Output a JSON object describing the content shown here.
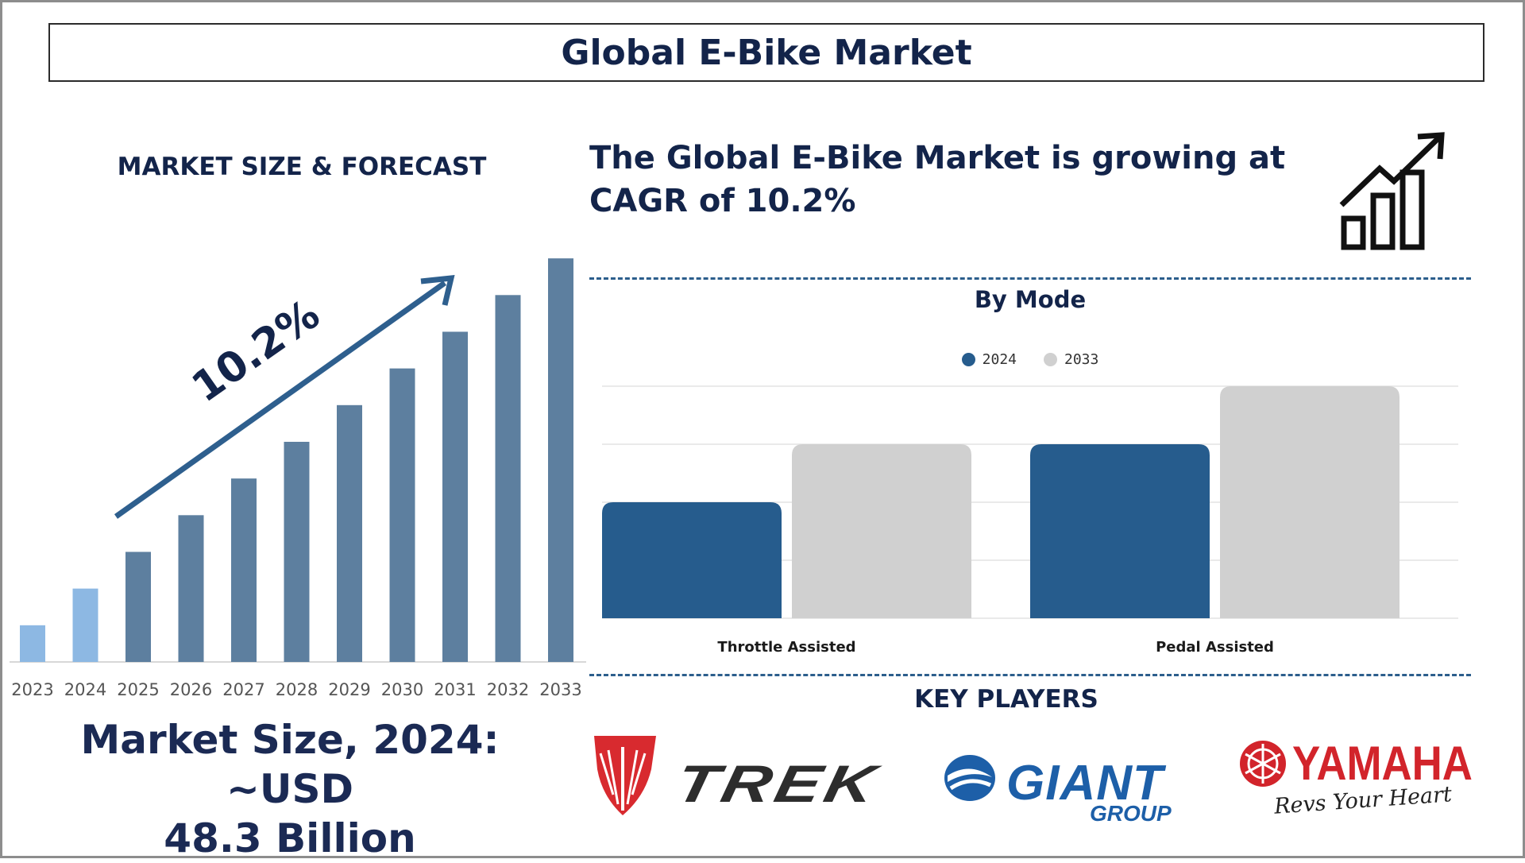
{
  "title": "Global E-Bike Market",
  "left_panel": {
    "heading": "MARKET SIZE & FORECAST",
    "market_size_line1": "Market Size, 2024: ~USD",
    "market_size_line2": "48.3 Billion"
  },
  "cagr_line1": "The Global E-Bike Market is growing at",
  "cagr_line2": "CAGR of 10.2%",
  "key_players": {
    "heading": "KEY PLAYERS",
    "logos": [
      {
        "name": "trek-shield-logo",
        "text": ""
      },
      {
        "name": "trek-logo",
        "text": "TREK"
      },
      {
        "name": "giant-group-logo",
        "text": "GIANT",
        "subtext": "GROUP"
      },
      {
        "name": "yamaha-logo",
        "text": "YAMAHA",
        "subtext": "Revs Your Heart"
      }
    ]
  },
  "colors": {
    "navy": "#13244a",
    "highlight_bar": "#8db8e3",
    "forecast_bar": "#5d7f9f",
    "series_2024": "#265c8d",
    "series_2033": "#d0d0d0",
    "arrow": "#2e5f8e"
  },
  "chart_data": [
    {
      "type": "bar",
      "title": "MARKET SIZE & FORECAST",
      "categories": [
        "2023",
        "2024",
        "2025",
        "2026",
        "2027",
        "2028",
        "2029",
        "2030",
        "2031",
        "2032",
        "2033"
      ],
      "values": [
        9,
        18,
        27,
        36,
        45,
        54,
        63,
        72,
        81,
        90,
        99
      ],
      "highlight_categories": [
        "2023",
        "2024"
      ],
      "annotation": "10.2%",
      "ylim": [
        0,
        100
      ],
      "grid": false
    },
    {
      "type": "bar",
      "title": "By Mode",
      "categories": [
        "Throttle Assisted",
        "Pedal Assisted"
      ],
      "series": [
        {
          "name": "2024",
          "values": [
            2,
            3
          ]
        },
        {
          "name": "2033",
          "values": [
            3,
            4
          ]
        }
      ],
      "ylim": [
        0,
        4
      ],
      "grid": true,
      "legend": "top-center"
    }
  ]
}
